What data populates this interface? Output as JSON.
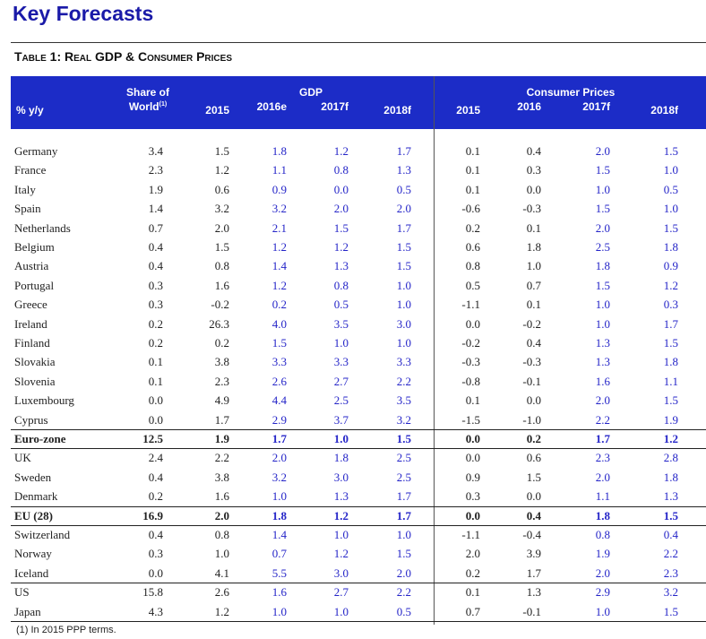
{
  "title": "Key Forecasts",
  "table_title": "Table 1: Real GDP & Consumer Prices",
  "header": {
    "unit": "% y/y",
    "share_line1": "Share of",
    "share_line2": "World",
    "share_sup": "(1)",
    "gdp_group": "GDP",
    "cp_group": "Consumer Prices",
    "gdp_cols": [
      "2015",
      "2016e",
      "2017f",
      "2018f"
    ],
    "cp_cols": [
      "2015",
      "2016",
      "2017f",
      "2018f"
    ]
  },
  "rows": [
    {
      "name": "Germany",
      "bold": false,
      "vals": [
        "3.4",
        "1.5",
        "1.8",
        "1.2",
        "1.7",
        "0.1",
        "0.4",
        "2.0",
        "1.5"
      ]
    },
    {
      "name": "France",
      "bold": false,
      "vals": [
        "2.3",
        "1.2",
        "1.1",
        "0.8",
        "1.3",
        "0.1",
        "0.3",
        "1.5",
        "1.0"
      ]
    },
    {
      "name": "Italy",
      "bold": false,
      "vals": [
        "1.9",
        "0.6",
        "0.9",
        "0.0",
        "0.5",
        "0.1",
        "0.0",
        "1.0",
        "0.5"
      ]
    },
    {
      "name": "Spain",
      "bold": false,
      "vals": [
        "1.4",
        "3.2",
        "3.2",
        "2.0",
        "2.0",
        "-0.6",
        "-0.3",
        "1.5",
        "1.0"
      ]
    },
    {
      "name": "Netherlands",
      "bold": false,
      "vals": [
        "0.7",
        "2.0",
        "2.1",
        "1.5",
        "1.7",
        "0.2",
        "0.1",
        "2.0",
        "1.5"
      ]
    },
    {
      "name": "Belgium",
      "bold": false,
      "vals": [
        "0.4",
        "1.5",
        "1.2",
        "1.2",
        "1.5",
        "0.6",
        "1.8",
        "2.5",
        "1.8"
      ]
    },
    {
      "name": "Austria",
      "bold": false,
      "vals": [
        "0.4",
        "0.8",
        "1.4",
        "1.3",
        "1.5",
        "0.8",
        "1.0",
        "1.8",
        "0.9"
      ]
    },
    {
      "name": "Portugal",
      "bold": false,
      "vals": [
        "0.3",
        "1.6",
        "1.2",
        "0.8",
        "1.0",
        "0.5",
        "0.7",
        "1.5",
        "1.2"
      ]
    },
    {
      "name": "Greece",
      "bold": false,
      "vals": [
        "0.3",
        "-0.2",
        "0.2",
        "0.5",
        "1.0",
        "-1.1",
        "0.1",
        "1.0",
        "0.3"
      ]
    },
    {
      "name": "Ireland",
      "bold": false,
      "vals": [
        "0.2",
        "26.3",
        "4.0",
        "3.5",
        "3.0",
        "0.0",
        "-0.2",
        "1.0",
        "1.7"
      ]
    },
    {
      "name": "Finland",
      "bold": false,
      "vals": [
        "0.2",
        "0.2",
        "1.5",
        "1.0",
        "1.0",
        "-0.2",
        "0.4",
        "1.3",
        "1.5"
      ]
    },
    {
      "name": "Slovakia",
      "bold": false,
      "vals": [
        "0.1",
        "3.8",
        "3.3",
        "3.3",
        "3.3",
        "-0.3",
        "-0.3",
        "1.3",
        "1.8"
      ]
    },
    {
      "name": "Slovenia",
      "bold": false,
      "vals": [
        "0.1",
        "2.3",
        "2.6",
        "2.7",
        "2.2",
        "-0.8",
        "-0.1",
        "1.6",
        "1.1"
      ]
    },
    {
      "name": "Luxembourg",
      "bold": false,
      "vals": [
        "0.0",
        "4.9",
        "4.4",
        "2.5",
        "3.5",
        "0.1",
        "0.0",
        "2.0",
        "1.5"
      ]
    },
    {
      "name": "Cyprus",
      "bold": false,
      "vals": [
        "0.0",
        "1.7",
        "2.9",
        "3.7",
        "3.2",
        "-1.5",
        "-1.0",
        "2.2",
        "1.9"
      ]
    },
    {
      "name": "Euro-zone",
      "bold": true,
      "vals": [
        "12.5",
        "1.9",
        "1.7",
        "1.0",
        "1.5",
        "0.0",
        "0.2",
        "1.7",
        "1.2"
      ]
    },
    {
      "name": "UK",
      "bold": false,
      "vals": [
        "2.4",
        "2.2",
        "2.0",
        "1.8",
        "2.5",
        "0.0",
        "0.6",
        "2.3",
        "2.8"
      ]
    },
    {
      "name": "Sweden",
      "bold": false,
      "vals": [
        "0.4",
        "3.8",
        "3.2",
        "3.0",
        "2.5",
        "0.9",
        "1.5",
        "2.0",
        "1.8"
      ]
    },
    {
      "name": "Denmark",
      "bold": false,
      "vals": [
        "0.2",
        "1.6",
        "1.0",
        "1.3",
        "1.7",
        "0.3",
        "0.0",
        "1.1",
        "1.3"
      ]
    },
    {
      "name": "EU (28)",
      "bold": true,
      "vals": [
        "16.9",
        "2.0",
        "1.8",
        "1.2",
        "1.7",
        "0.0",
        "0.4",
        "1.8",
        "1.5"
      ]
    },
    {
      "name": "Switzerland",
      "bold": false,
      "vals": [
        "0.4",
        "0.8",
        "1.4",
        "1.0",
        "1.0",
        "-1.1",
        "-0.4",
        "0.8",
        "0.4"
      ]
    },
    {
      "name": "Norway",
      "bold": false,
      "vals": [
        "0.3",
        "1.0",
        "0.7",
        "1.2",
        "1.5",
        "2.0",
        "3.9",
        "1.9",
        "2.2"
      ]
    },
    {
      "name": "Iceland",
      "bold": false,
      "vals": [
        "0.0",
        "4.1",
        "5.5",
        "3.0",
        "2.0",
        "0.2",
        "1.7",
        "2.0",
        "2.3"
      ]
    },
    {
      "name": "US",
      "bold": false,
      "vals": [
        "15.8",
        "2.6",
        "1.6",
        "2.7",
        "2.2",
        "0.1",
        "1.3",
        "2.9",
        "3.2"
      ]
    },
    {
      "name": "Japan",
      "bold": false,
      "vals": [
        "4.3",
        "1.2",
        "1.0",
        "1.0",
        "0.5",
        "0.7",
        "-0.1",
        "1.0",
        "1.5"
      ]
    }
  ],
  "footnote": "(1) In 2015 PPP terms.",
  "colors": {
    "title": "#1a1aa8",
    "header_bg": "#1c2cc7",
    "forecast_text": "#2424c8"
  }
}
